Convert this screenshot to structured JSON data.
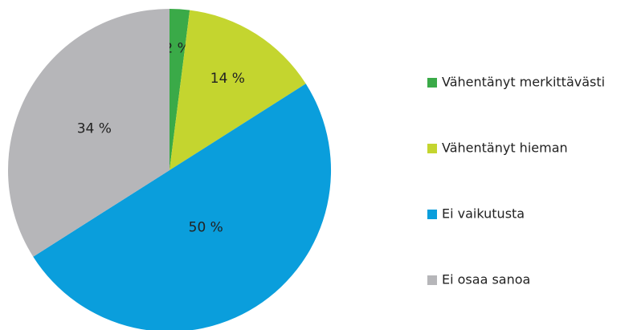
{
  "chart_data": {
    "type": "pie",
    "categories": [
      "Vähentänyt merkittävästi",
      "Vähentänyt hieman",
      "Ei vaikutusta",
      "Ei osaa sanoa"
    ],
    "values": [
      2,
      14,
      50,
      34
    ],
    "value_labels": [
      "2 %",
      "14 %",
      "50 %",
      "34 %"
    ],
    "colors": [
      "#3aaa48",
      "#c4d52f",
      "#0a9edc",
      "#b6b6b9"
    ],
    "legend": "right"
  }
}
